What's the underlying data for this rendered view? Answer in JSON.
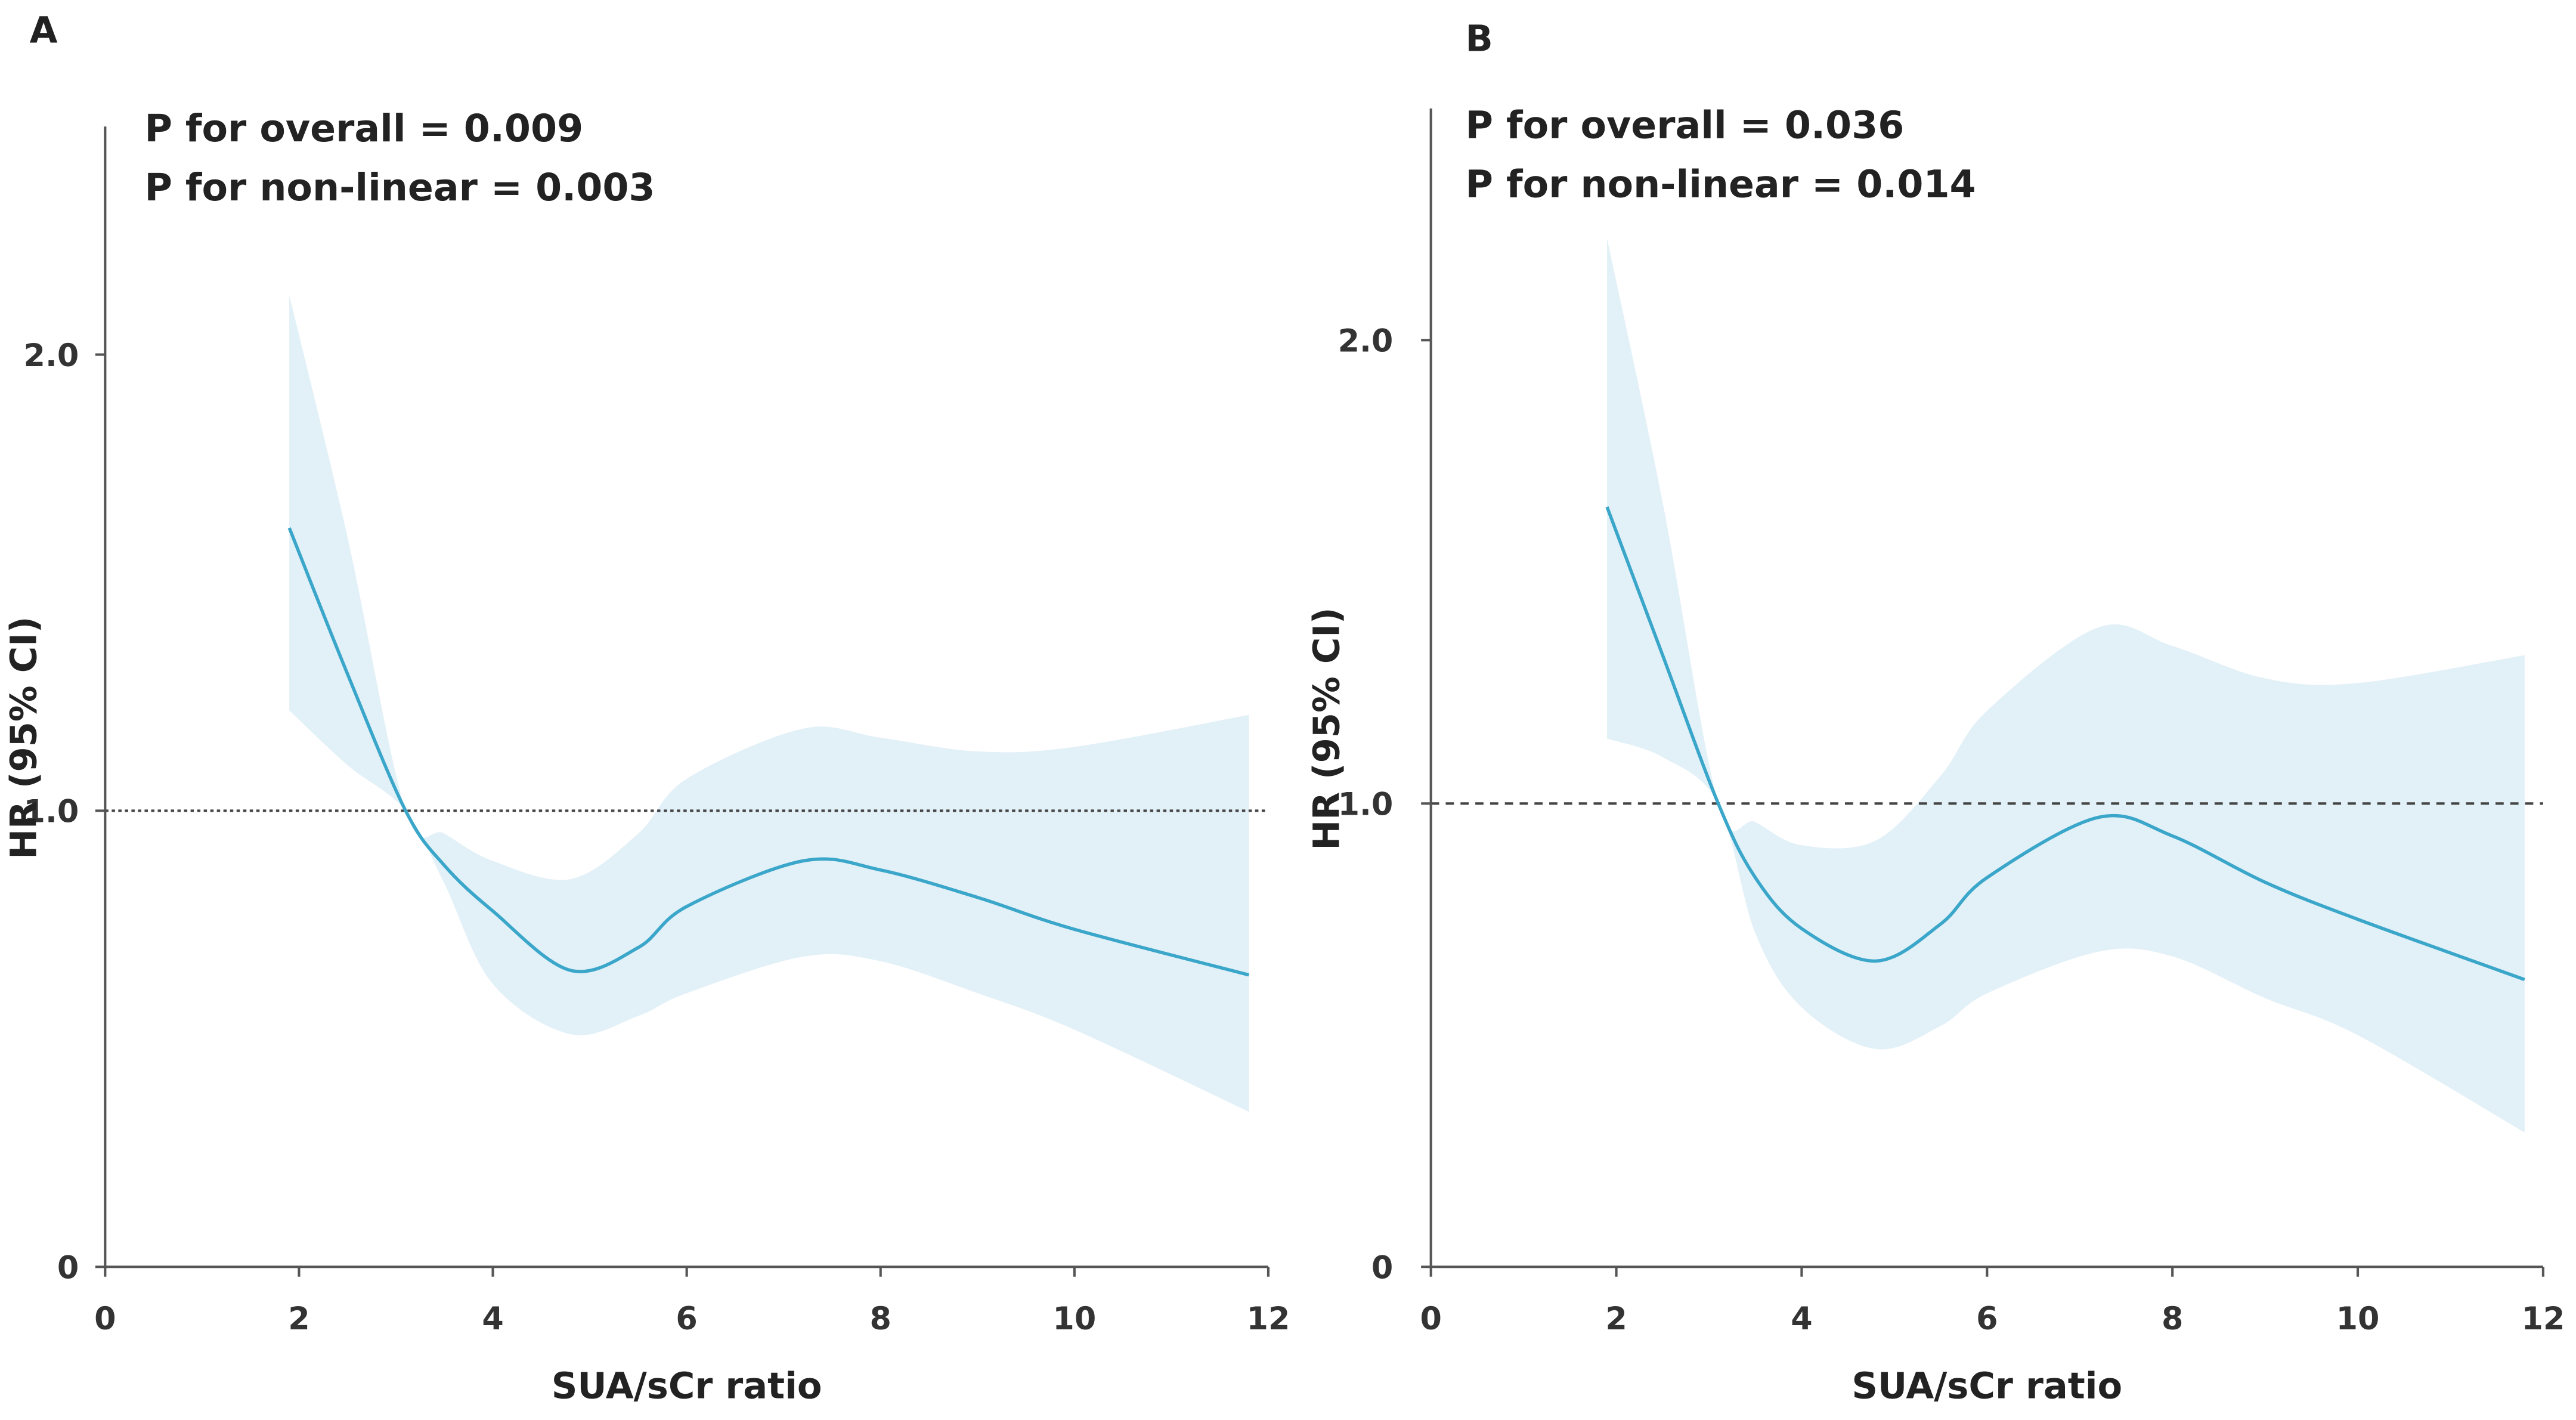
{
  "chart_data": [
    {
      "type": "line",
      "panel": "A",
      "annotations": [
        "P for overall = 0.009",
        "P for non-linear = 0.003"
      ],
      "xlabel": "SUA/sCr ratio",
      "ylabel": "HR (95% CI)",
      "x": [
        1.9,
        2.5,
        3.1,
        3.5,
        4,
        4.8,
        5.5,
        6,
        7.2,
        8,
        9,
        10,
        11.8
      ],
      "values": [
        1.62,
        1.3,
        1.0,
        0.88,
        0.78,
        0.65,
        0.7,
        0.79,
        0.89,
        0.87,
        0.81,
        0.74,
        0.64
      ],
      "ci_lower": [
        1.22,
        1.1,
        1.0,
        0.84,
        0.62,
        0.51,
        0.55,
        0.6,
        0.68,
        0.67,
        0.6,
        0.52,
        0.34
      ],
      "ci_upper": [
        2.13,
        1.6,
        1.0,
        0.95,
        0.89,
        0.85,
        0.95,
        1.07,
        1.18,
        1.16,
        1.13,
        1.14,
        1.21
      ],
      "color": "#3aa6c9",
      "band_color": "#e2f0f7",
      "reference_line": 1.0,
      "reference_style": "dotted",
      "xlim": [
        0,
        12
      ],
      "xticks": [
        0,
        2,
        4,
        6,
        8,
        10,
        12
      ],
      "ylim": [
        0,
        2.5
      ],
      "yticks": [
        0,
        {
          "value": 1,
          "label": "1.0"
        },
        {
          "value": 2,
          "label": "2.0"
        }
      ]
    },
    {
      "type": "line",
      "panel": "B",
      "annotations": [
        "P for overall = 0.036",
        "P for non-linear = 0.014"
      ],
      "xlabel": "SUA/sCr ratio",
      "ylabel": "HR (95% CI)",
      "x": [
        1.9,
        2.5,
        3.1,
        3.5,
        4,
        4.8,
        5.5,
        6,
        7.2,
        8,
        9,
        10,
        11.8
      ],
      "values": [
        1.64,
        1.32,
        1.0,
        0.84,
        0.73,
        0.66,
        0.74,
        0.84,
        0.97,
        0.93,
        0.83,
        0.75,
        0.62
      ],
      "ci_lower": [
        1.14,
        1.1,
        1.0,
        0.72,
        0.56,
        0.47,
        0.52,
        0.59,
        0.68,
        0.67,
        0.58,
        0.5,
        0.29
      ],
      "ci_upper": [
        2.22,
        1.65,
        1.0,
        0.96,
        0.91,
        0.92,
        1.06,
        1.2,
        1.38,
        1.34,
        1.27,
        1.26,
        1.32
      ],
      "color": "#3aa6c9",
      "band_color": "#e2f0f7",
      "reference_line": 1.0,
      "reference_style": "dashed",
      "xlim": [
        0,
        12
      ],
      "xticks": [
        0,
        2,
        4,
        6,
        8,
        10,
        12
      ],
      "ylim": [
        0,
        2.5
      ],
      "yticks": [
        0,
        {
          "value": 1,
          "label": "1.0"
        },
        {
          "value": 2,
          "label": "2.0"
        }
      ]
    }
  ]
}
